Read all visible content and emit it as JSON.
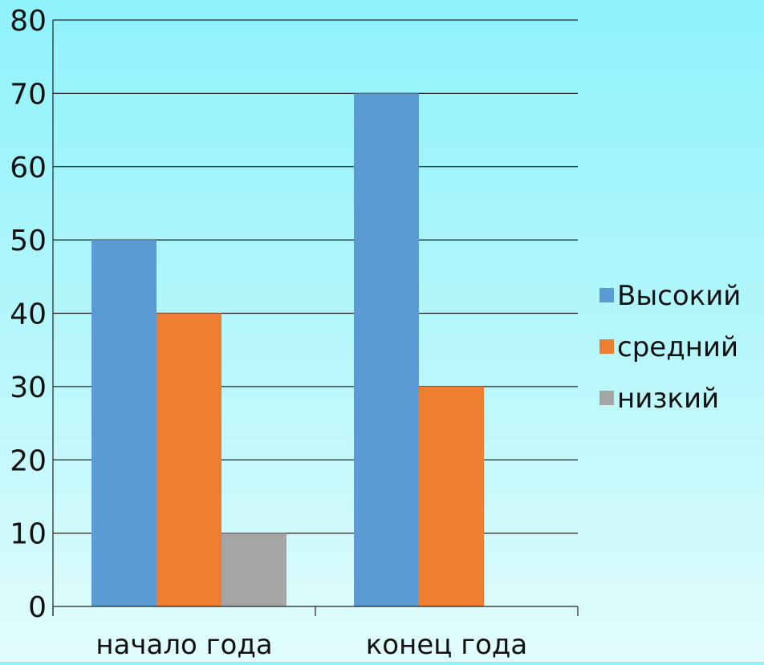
{
  "chart_data": {
    "type": "bar",
    "categories": [
      "начало года",
      "конец года"
    ],
    "series": [
      {
        "name": "Высокий",
        "values": [
          50,
          70
        ],
        "color": "#5b9bd5"
      },
      {
        "name": "средний",
        "values": [
          40,
          30
        ],
        "color": "#ed7d31"
      },
      {
        "name": "низкий",
        "values": [
          10,
          0
        ],
        "color": "#a5a5a5"
      }
    ],
    "yticks": [
      "0",
      "10",
      "20",
      "30",
      "40",
      "50",
      "60",
      "70",
      "80"
    ],
    "ylim": [
      0,
      80
    ],
    "ytick_step": 10,
    "grid": true,
    "legend_position": "right",
    "title": "",
    "xlabel": "",
    "ylabel": ""
  },
  "colors": {
    "gridline": "#222222",
    "background_top": "#8ff2fb",
    "background_bottom": "#e2fcfd"
  }
}
